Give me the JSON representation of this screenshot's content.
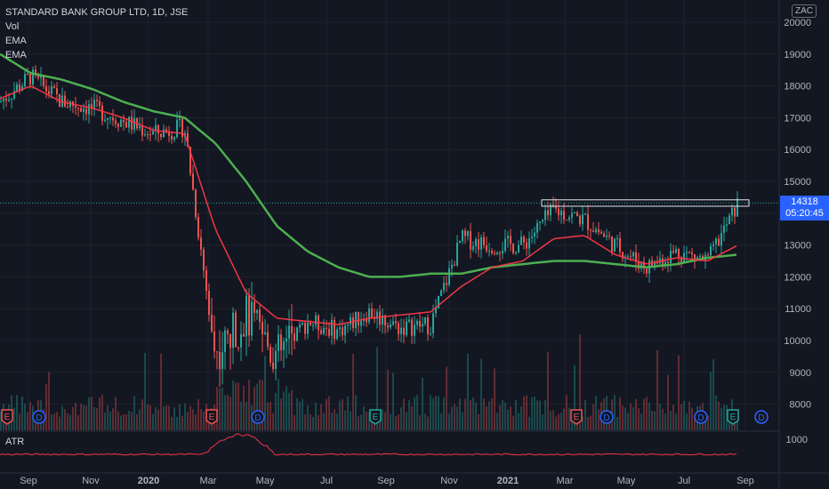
{
  "legend": {
    "title": "STANDARD BANK GROUP LTD, 1D, JSE",
    "vol": "Vol",
    "ema1": "EMA",
    "ema2": "EMA"
  },
  "currency_badge": "ZAC",
  "last_price": {
    "value": "14318",
    "countdown": "05:20:45"
  },
  "atr_label": "ATR",
  "colors": {
    "background": "#131722",
    "up": "#26a69a",
    "down": "#ef5350",
    "ema_fast": "#f23645",
    "ema_slow": "#4caf50",
    "grid": "#1e222d",
    "axis_text": "#b2b5be",
    "atr": "#f23645",
    "accent": "#2962ff"
  },
  "chart_data": {
    "type": "candlestick",
    "title": "STANDARD BANK GROUP LTD, 1D, JSE",
    "x_ticks": [
      "Sep",
      "Nov",
      "2020",
      "Mar",
      "May",
      "Jul",
      "Sep",
      "Nov",
      "2021",
      "Mar",
      "May",
      "Jul",
      "Sep"
    ],
    "y_ticks": [
      8000,
      9000,
      10000,
      11000,
      12000,
      13000,
      14000,
      15000,
      16000,
      17000,
      18000,
      19000,
      20000
    ],
    "ylim": [
      7600,
      20200
    ],
    "x": [
      "2019-08",
      "2019-09",
      "2019-10",
      "2019-11",
      "2019-12",
      "2020-01",
      "2020-02",
      "2020-03",
      "2020-04",
      "2020-05",
      "2020-06",
      "2020-07",
      "2020-08",
      "2020-09",
      "2020-10",
      "2020-11",
      "2020-12",
      "2021-01",
      "2021-02",
      "2021-03",
      "2021-04",
      "2021-05",
      "2021-06",
      "2021-07",
      "2021-08"
    ],
    "close_approx": [
      17500,
      18300,
      17500,
      17300,
      16900,
      16500,
      16700,
      9500,
      10800,
      9500,
      10600,
      10300,
      10900,
      10400,
      10500,
      13200,
      13000,
      13000,
      14100,
      13800,
      13000,
      12300,
      12800,
      12500,
      14318
    ],
    "last_price": 14318,
    "ema_slow_approx": [
      19000,
      18400,
      18200,
      17900,
      17500,
      17200,
      17000,
      16200,
      15000,
      13600,
      12800,
      12300,
      12000,
      12000,
      12100,
      12100,
      12300,
      12400,
      12500,
      12500,
      12400,
      12300,
      12400,
      12600,
      12700
    ],
    "ema_fast_approx": [
      17600,
      18000,
      17500,
      17300,
      17000,
      16600,
      16500,
      13500,
      11500,
      10700,
      10600,
      10500,
      10700,
      10800,
      10900,
      11700,
      12300,
      12500,
      13200,
      13300,
      12700,
      12400,
      12600,
      12500,
      13000
    ],
    "resistance_zone": [
      14220,
      14420
    ],
    "events": [
      {
        "label": "E"
      },
      {
        "label": "D"
      },
      {
        "label": "E"
      },
      {
        "label": "D"
      },
      {
        "label": "E"
      },
      {
        "label": "E"
      },
      {
        "label": "D"
      },
      {
        "label": "D"
      },
      {
        "label": "E"
      },
      {
        "label": "D"
      }
    ],
    "atr": {
      "label": "ATR",
      "y_tick": 1000
    }
  }
}
